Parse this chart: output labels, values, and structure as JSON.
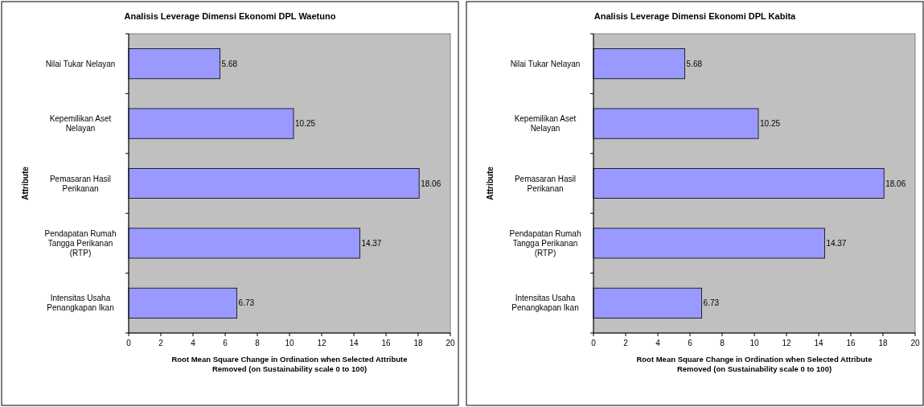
{
  "chart_data": [
    {
      "type": "bar",
      "orientation": "horizontal",
      "title": "Analisis Leverage Dimensi Ekonomi DPL Waetuno",
      "xlabel": "Root Mean Square Change in Ordination when Selected Attribute Removed (on Sustainability scale 0 to 100)",
      "ylabel": "Attribute",
      "categories": [
        "Nilai Tukar Nelayan",
        "Kepemilikan Aset Nelayan",
        "Pemasaran Hasil Perikanan",
        "Pendapatan Rumah Tangga Perikanan (RTP)",
        "Intensitas Usaha Penangkapan Ikan"
      ],
      "values": [
        5.68,
        10.25,
        18.06,
        14.37,
        6.73
      ],
      "color": "#9999ff",
      "xlim": [
        0,
        20
      ],
      "xticks": [
        0,
        2,
        4,
        6,
        8,
        10,
        12,
        14,
        16,
        18,
        20
      ],
      "grid": false,
      "data_labels": true
    },
    {
      "type": "bar",
      "orientation": "horizontal",
      "title": "Analisis Leverage Dimensi Ekonomi DPL Kabita",
      "xlabel": "Root Mean Square Change in Ordination when Selected Attribute Removed (on Sustainability scale 0 to 100)",
      "ylabel": "Attribute",
      "categories": [
        "Nilai Tukar Nelayan",
        "Kepemilikan Aset Nelayan",
        "Pemasaran Hasil Perikanan",
        "Pendapatan Rumah Tangga Perikanan (RTP)",
        "Intensitas Usaha Penangkapan Ikan"
      ],
      "values": [
        5.68,
        10.25,
        18.06,
        14.37,
        6.73
      ],
      "color": "#9999ff",
      "xlim": [
        0,
        20
      ],
      "xticks": [
        0,
        2,
        4,
        6,
        8,
        10,
        12,
        14,
        16,
        18,
        20
      ],
      "grid": false,
      "data_labels": true
    }
  ]
}
